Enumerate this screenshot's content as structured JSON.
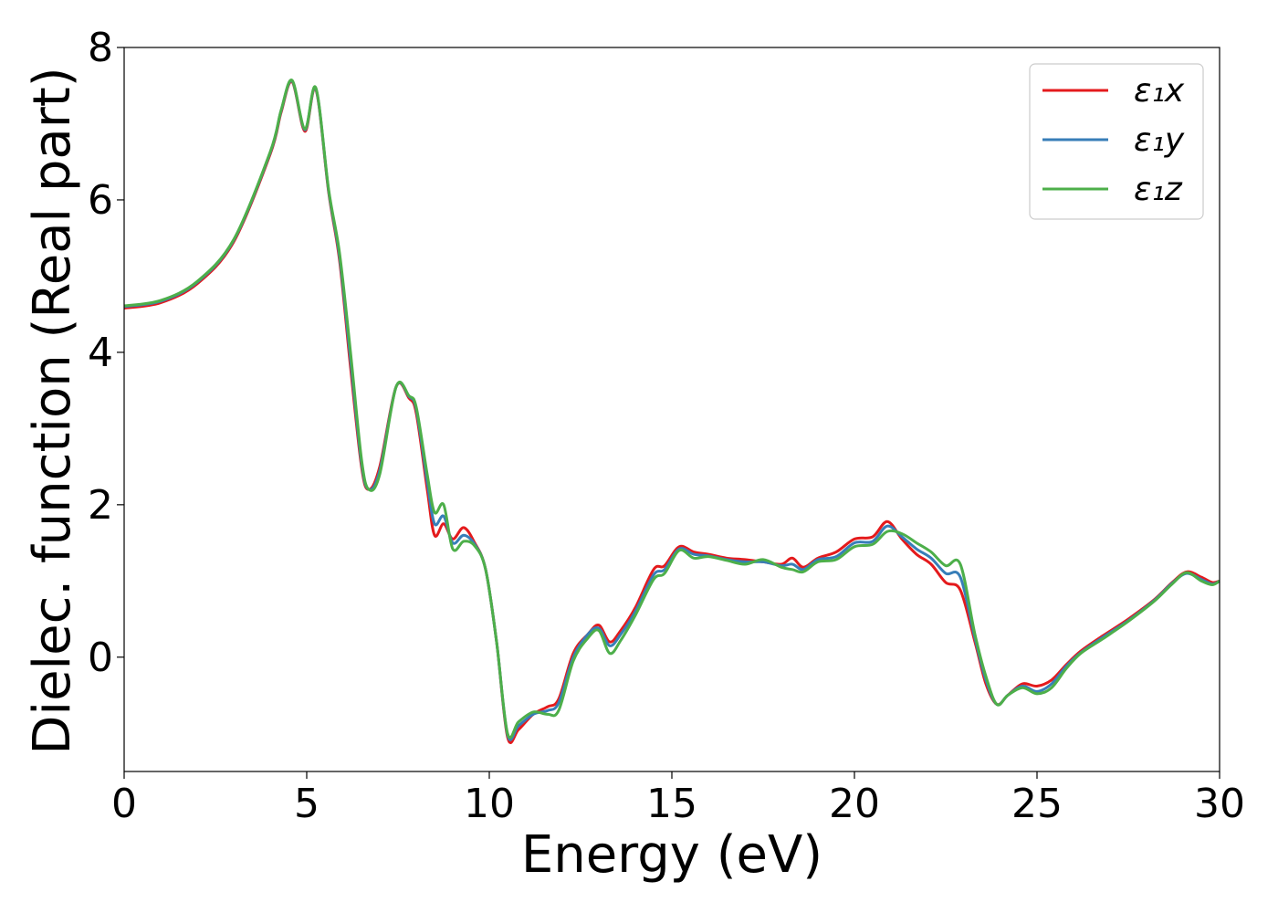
{
  "chart_data": {
    "type": "line",
    "title": "",
    "xlabel": "Energy (eV)",
    "ylabel": "Dielec. function (Real part)",
    "xlim": [
      0,
      30
    ],
    "ylim": [
      -1.5,
      8
    ],
    "xticks": [
      "0",
      "5",
      "10",
      "15",
      "20",
      "25",
      "30"
    ],
    "yticks": [
      "0",
      "2",
      "4",
      "6",
      "8"
    ],
    "grid": false,
    "legend_position": "top-right",
    "series": [
      {
        "name": "ε₁x",
        "color": "#e41a1c",
        "points": [
          [
            0,
            4.58
          ],
          [
            1,
            4.65
          ],
          [
            2,
            4.9
          ],
          [
            3,
            5.45
          ],
          [
            4,
            6.6
          ],
          [
            4.3,
            7.15
          ],
          [
            4.6,
            7.55
          ],
          [
            4.95,
            6.9
          ],
          [
            5.25,
            7.45
          ],
          [
            5.6,
            6.1
          ],
          [
            5.9,
            5.2
          ],
          [
            6.2,
            3.8
          ],
          [
            6.5,
            2.5
          ],
          [
            6.7,
            2.2
          ],
          [
            7.0,
            2.5
          ],
          [
            7.45,
            3.55
          ],
          [
            7.8,
            3.4
          ],
          [
            8.0,
            3.2
          ],
          [
            8.3,
            2.2
          ],
          [
            8.5,
            1.6
          ],
          [
            8.75,
            1.75
          ],
          [
            9.0,
            1.55
          ],
          [
            9.3,
            1.7
          ],
          [
            9.6,
            1.5
          ],
          [
            9.9,
            1.15
          ],
          [
            10.2,
            0.2
          ],
          [
            10.5,
            -1.05
          ],
          [
            10.8,
            -0.95
          ],
          [
            11.2,
            -0.75
          ],
          [
            11.6,
            -0.65
          ],
          [
            11.9,
            -0.55
          ],
          [
            12.3,
            0.05
          ],
          [
            12.7,
            0.3
          ],
          [
            13.0,
            0.42
          ],
          [
            13.3,
            0.2
          ],
          [
            13.6,
            0.35
          ],
          [
            14.0,
            0.65
          ],
          [
            14.5,
            1.15
          ],
          [
            14.8,
            1.2
          ],
          [
            15.2,
            1.45
          ],
          [
            15.6,
            1.38
          ],
          [
            16.0,
            1.35
          ],
          [
            16.5,
            1.3
          ],
          [
            17.0,
            1.28
          ],
          [
            17.5,
            1.25
          ],
          [
            18.0,
            1.22
          ],
          [
            18.3,
            1.3
          ],
          [
            18.6,
            1.18
          ],
          [
            19.0,
            1.3
          ],
          [
            19.5,
            1.38
          ],
          [
            20.0,
            1.55
          ],
          [
            20.5,
            1.58
          ],
          [
            20.9,
            1.78
          ],
          [
            21.3,
            1.55
          ],
          [
            21.7,
            1.35
          ],
          [
            22.1,
            1.22
          ],
          [
            22.5,
            0.98
          ],
          [
            22.9,
            0.88
          ],
          [
            23.3,
            0.2
          ],
          [
            23.6,
            -0.35
          ],
          [
            23.9,
            -0.62
          ],
          [
            24.2,
            -0.5
          ],
          [
            24.6,
            -0.35
          ],
          [
            25.0,
            -0.38
          ],
          [
            25.4,
            -0.3
          ],
          [
            25.8,
            -0.1
          ],
          [
            26.2,
            0.08
          ],
          [
            26.8,
            0.28
          ],
          [
            27.5,
            0.5
          ],
          [
            28.2,
            0.75
          ],
          [
            28.7,
            0.98
          ],
          [
            29.1,
            1.12
          ],
          [
            29.5,
            1.05
          ],
          [
            29.8,
            0.98
          ],
          [
            30.0,
            1.0
          ]
        ]
      },
      {
        "name": "ε₁y",
        "color": "#377eb8",
        "points": [
          [
            0,
            4.6
          ],
          [
            1,
            4.67
          ],
          [
            2,
            4.92
          ],
          [
            3,
            5.47
          ],
          [
            4,
            6.62
          ],
          [
            4.3,
            7.17
          ],
          [
            4.6,
            7.56
          ],
          [
            4.95,
            6.92
          ],
          [
            5.25,
            7.46
          ],
          [
            5.6,
            6.12
          ],
          [
            5.9,
            5.25
          ],
          [
            6.2,
            3.9
          ],
          [
            6.5,
            2.55
          ],
          [
            6.7,
            2.2
          ],
          [
            7.0,
            2.45
          ],
          [
            7.45,
            3.55
          ],
          [
            7.8,
            3.42
          ],
          [
            8.0,
            3.25
          ],
          [
            8.3,
            2.3
          ],
          [
            8.5,
            1.75
          ],
          [
            8.75,
            1.85
          ],
          [
            9.0,
            1.5
          ],
          [
            9.3,
            1.6
          ],
          [
            9.6,
            1.48
          ],
          [
            9.9,
            1.15
          ],
          [
            10.2,
            0.2
          ],
          [
            10.5,
            -1.02
          ],
          [
            10.8,
            -0.9
          ],
          [
            11.2,
            -0.75
          ],
          [
            11.6,
            -0.7
          ],
          [
            11.9,
            -0.6
          ],
          [
            12.3,
            0.0
          ],
          [
            12.7,
            0.3
          ],
          [
            13.0,
            0.38
          ],
          [
            13.3,
            0.15
          ],
          [
            13.6,
            0.3
          ],
          [
            14.0,
            0.6
          ],
          [
            14.5,
            1.08
          ],
          [
            14.8,
            1.15
          ],
          [
            15.2,
            1.42
          ],
          [
            15.6,
            1.35
          ],
          [
            16.0,
            1.33
          ],
          [
            16.5,
            1.28
          ],
          [
            17.0,
            1.25
          ],
          [
            17.5,
            1.25
          ],
          [
            18.0,
            1.2
          ],
          [
            18.3,
            1.22
          ],
          [
            18.6,
            1.15
          ],
          [
            19.0,
            1.28
          ],
          [
            19.5,
            1.32
          ],
          [
            20.0,
            1.5
          ],
          [
            20.5,
            1.52
          ],
          [
            20.9,
            1.72
          ],
          [
            21.3,
            1.58
          ],
          [
            21.7,
            1.42
          ],
          [
            22.1,
            1.3
          ],
          [
            22.5,
            1.1
          ],
          [
            22.9,
            1.05
          ],
          [
            23.3,
            0.25
          ],
          [
            23.6,
            -0.3
          ],
          [
            23.9,
            -0.62
          ],
          [
            24.2,
            -0.5
          ],
          [
            24.6,
            -0.38
          ],
          [
            25.0,
            -0.45
          ],
          [
            25.4,
            -0.35
          ],
          [
            25.8,
            -0.12
          ],
          [
            26.2,
            0.06
          ],
          [
            26.8,
            0.26
          ],
          [
            27.5,
            0.48
          ],
          [
            28.2,
            0.74
          ],
          [
            28.7,
            0.97
          ],
          [
            29.1,
            1.1
          ],
          [
            29.5,
            1.02
          ],
          [
            29.8,
            0.96
          ],
          [
            30.0,
            1.0
          ]
        ]
      },
      {
        "name": "ε₁z",
        "color": "#4daf4a",
        "points": [
          [
            0,
            4.61
          ],
          [
            1,
            4.68
          ],
          [
            2,
            4.93
          ],
          [
            3,
            5.48
          ],
          [
            4,
            6.63
          ],
          [
            4.3,
            7.18
          ],
          [
            4.6,
            7.57
          ],
          [
            4.95,
            6.93
          ],
          [
            5.25,
            7.47
          ],
          [
            5.6,
            6.14
          ],
          [
            5.9,
            5.3
          ],
          [
            6.2,
            4.0
          ],
          [
            6.5,
            2.6
          ],
          [
            6.7,
            2.2
          ],
          [
            7.0,
            2.4
          ],
          [
            7.45,
            3.55
          ],
          [
            7.8,
            3.43
          ],
          [
            8.0,
            3.28
          ],
          [
            8.3,
            2.4
          ],
          [
            8.5,
            1.9
          ],
          [
            8.75,
            2.0
          ],
          [
            9.0,
            1.42
          ],
          [
            9.3,
            1.52
          ],
          [
            9.6,
            1.46
          ],
          [
            9.9,
            1.15
          ],
          [
            10.2,
            0.2
          ],
          [
            10.5,
            -1.0
          ],
          [
            10.8,
            -0.85
          ],
          [
            11.2,
            -0.72
          ],
          [
            11.6,
            -0.75
          ],
          [
            11.9,
            -0.7
          ],
          [
            12.3,
            -0.05
          ],
          [
            12.7,
            0.25
          ],
          [
            13.0,
            0.35
          ],
          [
            13.3,
            0.05
          ],
          [
            13.6,
            0.22
          ],
          [
            14.0,
            0.55
          ],
          [
            14.5,
            1.02
          ],
          [
            14.8,
            1.1
          ],
          [
            15.2,
            1.4
          ],
          [
            15.6,
            1.3
          ],
          [
            16.0,
            1.32
          ],
          [
            16.5,
            1.27
          ],
          [
            17.0,
            1.22
          ],
          [
            17.5,
            1.28
          ],
          [
            18.0,
            1.18
          ],
          [
            18.3,
            1.15
          ],
          [
            18.6,
            1.12
          ],
          [
            19.0,
            1.25
          ],
          [
            19.5,
            1.28
          ],
          [
            20.0,
            1.45
          ],
          [
            20.5,
            1.48
          ],
          [
            20.9,
            1.65
          ],
          [
            21.3,
            1.62
          ],
          [
            21.7,
            1.5
          ],
          [
            22.1,
            1.38
          ],
          [
            22.5,
            1.2
          ],
          [
            22.9,
            1.22
          ],
          [
            23.3,
            0.3
          ],
          [
            23.6,
            -0.25
          ],
          [
            23.9,
            -0.62
          ],
          [
            24.2,
            -0.5
          ],
          [
            24.6,
            -0.4
          ],
          [
            25.0,
            -0.48
          ],
          [
            25.4,
            -0.4
          ],
          [
            25.8,
            -0.15
          ],
          [
            26.2,
            0.05
          ],
          [
            26.8,
            0.24
          ],
          [
            27.5,
            0.47
          ],
          [
            28.2,
            0.73
          ],
          [
            28.7,
            0.96
          ],
          [
            29.1,
            1.11
          ],
          [
            29.5,
            1.0
          ],
          [
            29.8,
            0.95
          ],
          [
            30.0,
            1.0
          ]
        ]
      }
    ]
  }
}
